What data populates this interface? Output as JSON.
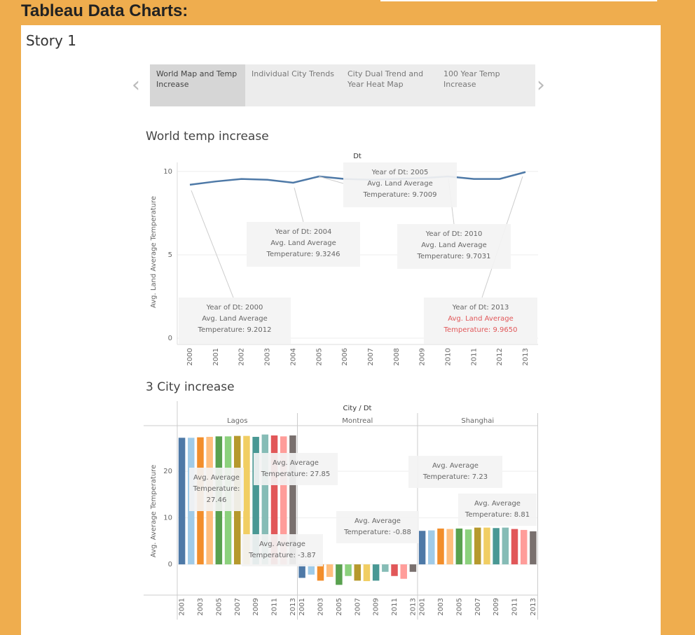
{
  "header": {
    "title": "Tableau Data Charts:"
  },
  "story": {
    "title": "Story 1",
    "tabs": [
      "World Map and Temp Increase",
      "Individual City Trends",
      "City Dual Trend and Year Heat Map",
      "100 Year Temp Increase"
    ]
  },
  "chart_data": [
    {
      "type": "line",
      "title": "World temp increase",
      "x_axis_title": "Dt",
      "y_axis_title": "Avg. Land Average Temperature",
      "categories": [
        "2000",
        "2001",
        "2002",
        "2003",
        "2004",
        "2005",
        "2006",
        "2007",
        "2008",
        "2009",
        "2010",
        "2011",
        "2012",
        "2013"
      ],
      "values": [
        9.2012,
        9.4,
        9.55,
        9.5,
        9.3246,
        9.7009,
        9.55,
        9.5,
        9.55,
        9.6,
        9.7031,
        9.55,
        9.55,
        9.965
      ],
      "color": "#4e79a7",
      "ylim": [
        0,
        10.5
      ],
      "yticks": [
        0,
        5,
        10
      ],
      "grid": true,
      "annotations": [
        {
          "lines": [
            "Year of Dt: 2000",
            "Avg. Land Average",
            "Temperature: 9.2012"
          ]
        },
        {
          "lines": [
            "Year of Dt: 2004",
            "Avg. Land Average",
            "Temperature: 9.3246"
          ]
        },
        {
          "lines": [
            "Year of Dt: 2005",
            "Avg. Land Average",
            "Temperature: 9.7009"
          ]
        },
        {
          "lines": [
            "Year of Dt: 2010",
            "Avg. Land Average",
            "Temperature: 9.7031"
          ]
        },
        {
          "lines": [
            "Year of Dt: 2013",
            {
              "text": "Avg. Land Average",
              "color": "#e15759"
            },
            {
              "text": "Temperature: 9.9650",
              "color": "#e15759"
            }
          ]
        }
      ]
    },
    {
      "type": "bar",
      "title": "3 City increase",
      "x_axis_title": "City / Dt",
      "y_axis_title": "Avg. Average Temperature",
      "categories": [
        "2001",
        null,
        "2003",
        null,
        "2005",
        null,
        "2007",
        null,
        "2009",
        null,
        "2011",
        null,
        "2013"
      ],
      "colors": [
        "#4e79a7",
        "#a0cbe8",
        "#f28e2b",
        "#ffbe7d",
        "#59a14f",
        "#8cd17d",
        "#b6992d",
        "#f1ce63",
        "#499894",
        "#86bcb6",
        "#e15759",
        "#ff9d9a",
        "#79706e"
      ],
      "series": [
        {
          "name": "Lagos",
          "values": [
            27.2,
            27.2,
            27.3,
            27.4,
            27.5,
            27.5,
            27.6,
            27.6,
            27.4,
            27.9,
            27.7,
            27.5,
            27.7
          ]
        },
        {
          "name": "Montreal",
          "values": [
            -2.9,
            -2.2,
            -3.5,
            -2.7,
            -4.4,
            -2.5,
            -3.5,
            -3.6,
            -3.5,
            -1.6,
            -2.5,
            -3.1,
            -1.6
          ]
        },
        {
          "name": "Shanghai",
          "values": [
            7.2,
            7.3,
            7.7,
            7.6,
            7.7,
            7.5,
            7.9,
            7.9,
            7.8,
            7.9,
            7.6,
            7.4,
            7.1
          ]
        }
      ],
      "ylim": [
        -6.6,
        29.8
      ],
      "yticks": [
        0,
        10,
        20
      ],
      "grid": true,
      "annotations": [
        {
          "lines": [
            "Avg. Average",
            "Temperature:",
            "27.46"
          ]
        },
        {
          "lines": [
            "Avg. Average",
            "Temperature: 27.85"
          ]
        },
        {
          "lines": [
            "Avg. Average",
            "Temperature: -3.87"
          ]
        },
        {
          "lines": [
            "Avg. Average",
            "Temperature: -0.88"
          ]
        },
        {
          "lines": [
            "Avg. Average",
            "Temperature: 7.23"
          ]
        },
        {
          "lines": [
            "Avg. Average",
            "Temperature: 8.81"
          ]
        }
      ]
    }
  ]
}
